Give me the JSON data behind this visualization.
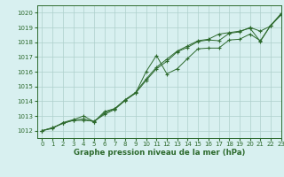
{
  "x": [
    0,
    1,
    2,
    3,
    4,
    5,
    6,
    7,
    8,
    9,
    10,
    11,
    12,
    13,
    14,
    15,
    16,
    17,
    18,
    19,
    20,
    21,
    22,
    23
  ],
  "line1": [
    1012.0,
    1012.2,
    1012.5,
    1012.7,
    1012.8,
    1012.6,
    1013.2,
    1013.5,
    1014.1,
    1014.6,
    1015.5,
    1016.3,
    1016.85,
    1017.4,
    1017.75,
    1018.1,
    1018.2,
    1018.55,
    1018.65,
    1018.75,
    1018.95,
    1018.05,
    1019.15,
    1019.95
  ],
  "line2": [
    1012.0,
    1012.2,
    1012.5,
    1012.7,
    1012.7,
    1012.65,
    1013.1,
    1013.45,
    1014.05,
    1014.55,
    1015.4,
    1016.2,
    1016.7,
    1017.35,
    1017.65,
    1018.05,
    1018.15,
    1018.1,
    1018.6,
    1018.7,
    1019.0,
    1018.75,
    1019.1,
    1019.9
  ],
  "line3": [
    1012.0,
    1012.15,
    1012.55,
    1012.75,
    1013.0,
    1012.6,
    1013.3,
    1013.5,
    1014.1,
    1014.55,
    1016.0,
    1017.1,
    1015.85,
    1016.2,
    1016.9,
    1017.55,
    1017.6,
    1017.6,
    1018.15,
    1018.2,
    1018.55,
    1018.1,
    1019.15,
    1019.85
  ],
  "line_color": "#2d6a2d",
  "bg_color": "#d8f0f0",
  "grid_color": "#aed0cc",
  "xlabel": "Graphe pression niveau de la mer (hPa)",
  "ylim": [
    1011.5,
    1020.5
  ],
  "xlim": [
    -0.5,
    23
  ],
  "yticks": [
    1012,
    1013,
    1014,
    1015,
    1016,
    1017,
    1018,
    1019,
    1020
  ],
  "xticks": [
    0,
    1,
    2,
    3,
    4,
    5,
    6,
    7,
    8,
    9,
    10,
    11,
    12,
    13,
    14,
    15,
    16,
    17,
    18,
    19,
    20,
    21,
    22,
    23
  ],
  "tick_fontsize": 5.0,
  "xlabel_fontsize": 6.2
}
